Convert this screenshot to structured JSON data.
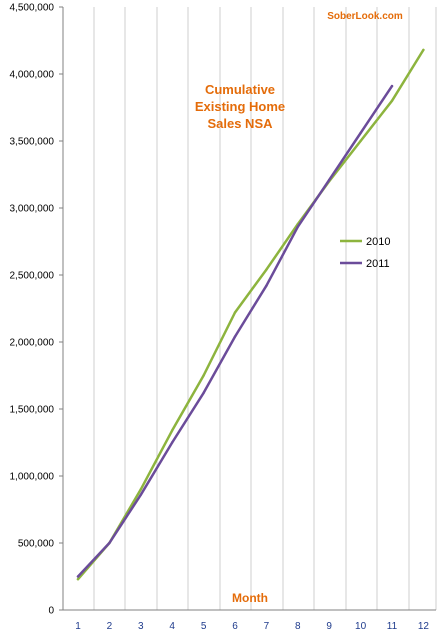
{
  "chart_data": {
    "type": "line",
    "title_lines": [
      "Cumulative",
      "Existing Home",
      "Sales NSA"
    ],
    "watermark": "SoberLook.com",
    "xlabel": "Month",
    "ylabel": "",
    "x": [
      1,
      2,
      3,
      4,
      5,
      6,
      7,
      8,
      9,
      10,
      11,
      12
    ],
    "x_tick_labels": [
      "1",
      "2",
      "3",
      "4",
      "5",
      "6",
      "7",
      "8",
      "9",
      "10",
      "11",
      "12"
    ],
    "ylim": [
      0,
      4500000
    ],
    "y_tick_values": [
      0,
      500000,
      1000000,
      1500000,
      2000000,
      2500000,
      3000000,
      3500000,
      4000000,
      4500000
    ],
    "y_tick_labels": [
      "0",
      "500,000",
      "1,000,000",
      "1,500,000",
      "2,000,000",
      "2,500,000",
      "3,000,000",
      "3,500,000",
      "4,000,000",
      "4,500,000"
    ],
    "grid": "vertical",
    "legend_position": "right",
    "series": [
      {
        "name": "2010",
        "color": "#8db43e",
        "values": [
          230000,
          500000,
          900000,
          1340000,
          1750000,
          2220000,
          2540000,
          2880000,
          3200000,
          3500000,
          3800000,
          4180000
        ]
      },
      {
        "name": "2011",
        "color": "#6b4c9a",
        "values": [
          250000,
          500000,
          860000,
          1250000,
          1620000,
          2040000,
          2420000,
          2860000,
          3210000,
          3560000,
          3910000,
          null
        ]
      }
    ]
  }
}
